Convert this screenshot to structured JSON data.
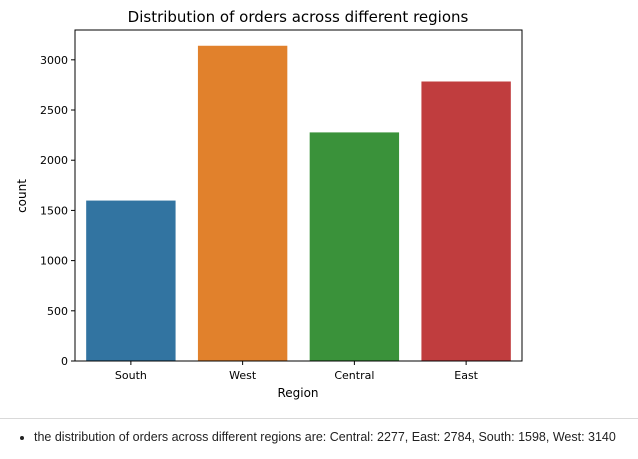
{
  "chart_data": {
    "type": "bar",
    "title": "Distribution of orders across different regions",
    "xlabel": "Region",
    "ylabel": "count",
    "categories": [
      "South",
      "West",
      "Central",
      "East"
    ],
    "values": [
      1598,
      3140,
      2277,
      2784
    ],
    "colors": [
      "#3274a1",
      "#e1812c",
      "#3a923a",
      "#c03d3e"
    ],
    "ylim": [
      0,
      3297
    ],
    "yticks": [
      "0",
      "500",
      "1000",
      "1500",
      "2000",
      "2500",
      "3000"
    ],
    "grid": false
  },
  "notes": {
    "summary": "the distribution of orders across different regions are: Central: 2277, East: 2784, South: 1598, West: 3140"
  }
}
